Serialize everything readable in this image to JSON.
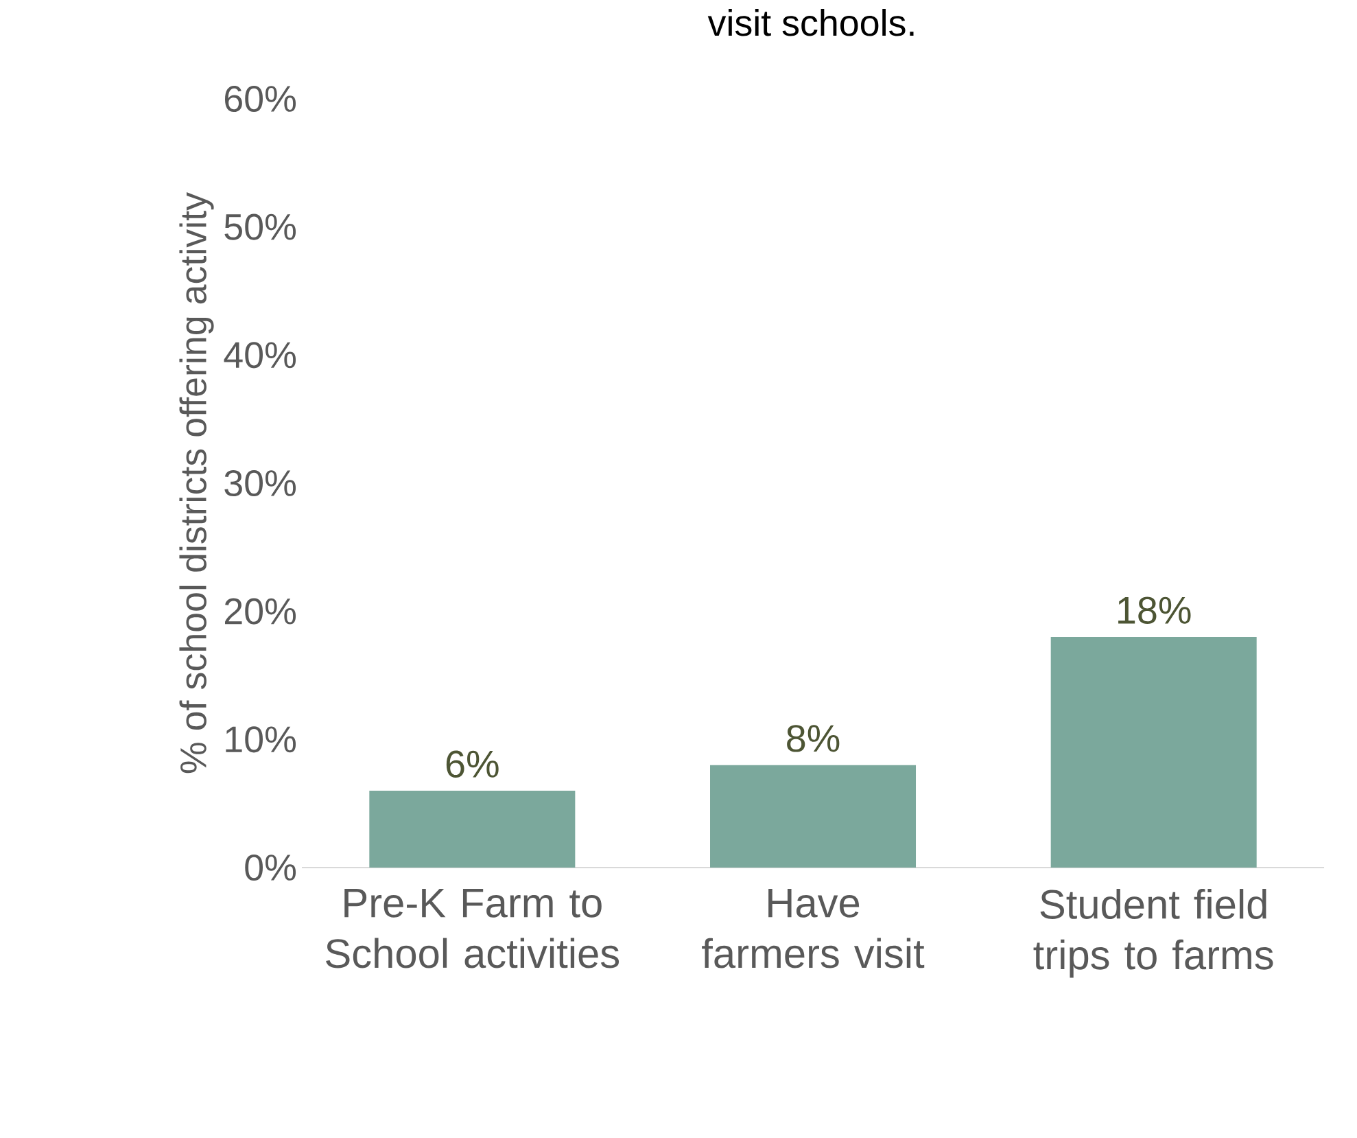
{
  "chart_data": {
    "type": "bar",
    "title": "visit schools.",
    "ylabel": "% of school districts offering activity",
    "categories": [
      "Pre-K Farm to School activities",
      "Have farmers visit",
      "Student field trips to farms"
    ],
    "values": [
      6,
      8,
      18
    ],
    "value_labels": [
      "6%",
      "8%",
      "18%"
    ],
    "color": "#7ba89c",
    "ylim": [
      0,
      60
    ],
    "yticks": [
      {
        "value": 0,
        "label": "0%"
      },
      {
        "value": 10,
        "label": "10%"
      },
      {
        "value": 20,
        "label": "20%"
      },
      {
        "value": 30,
        "label": "30%"
      },
      {
        "value": 40,
        "label": "40%"
      },
      {
        "value": 50,
        "label": "50%"
      },
      {
        "value": 60,
        "label": "60%"
      }
    ],
    "grid": false
  }
}
